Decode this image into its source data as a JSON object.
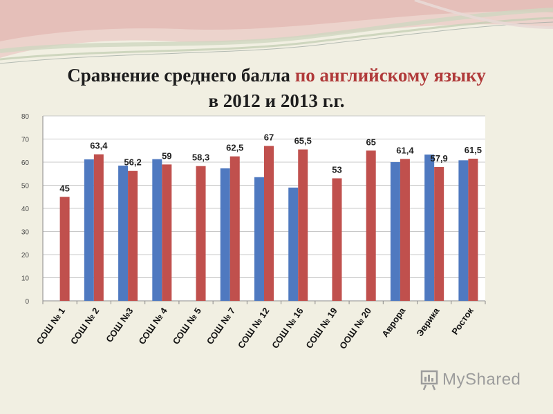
{
  "slide": {
    "title_line1_part1": "Сравнение среднего балла ",
    "title_line1_part2": "по английскому языку",
    "title_line2": "в 2012 и 2013 г.г.",
    "watermark": "MyShared"
  },
  "colors": {
    "series_2012": "#4f79c0",
    "series_2013": "#c0504d",
    "title_highlight": "#b03a3a",
    "background": "#f1efe2"
  },
  "chart_data": {
    "type": "bar",
    "categories": [
      "СОШ № 1",
      "СОШ № 2",
      "СОШ №3",
      "СОШ № 4",
      "СОШ № 5",
      "СОШ № 7",
      "СОШ № 12",
      "СОШ № 16",
      "СОШ № 19",
      "ООШ № 20",
      "Аврора",
      "Эврика",
      "Росток"
    ],
    "series": [
      {
        "values": [
          null,
          61.2,
          58.5,
          61.3,
          null,
          57.3,
          53.5,
          49.0,
          null,
          null,
          60.0,
          63.3,
          60.8
        ],
        "color": "#4f79c0",
        "show_labels": false
      },
      {
        "values": [
          45,
          63.4,
          56.2,
          59,
          58.3,
          62.5,
          67,
          65.5,
          53,
          65,
          61.4,
          57.9,
          61.5
        ],
        "labels": [
          "45",
          "63,4",
          "56,2",
          "59",
          "58,3",
          "62,5",
          "67",
          "65,5",
          "53",
          "65",
          "61,4",
          "57,9",
          "61,5"
        ],
        "color": "#c0504d",
        "show_labels": true
      }
    ],
    "y_ticks": [
      0,
      10,
      20,
      30,
      40,
      50,
      60,
      70,
      80
    ],
    "ylim": [
      0,
      80
    ],
    "grid": true,
    "legend": "none"
  }
}
